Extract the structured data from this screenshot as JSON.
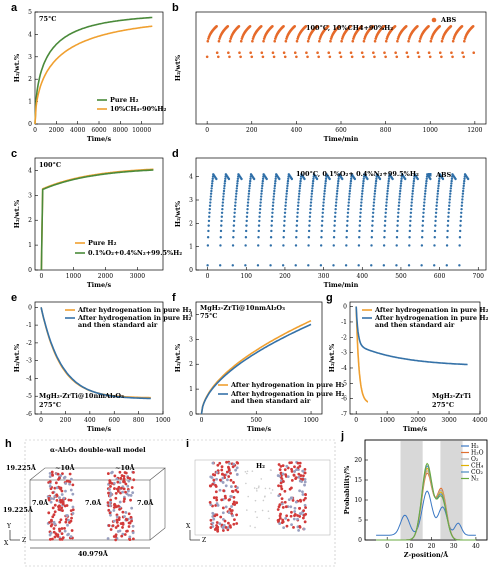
{
  "colors": {
    "orange": "#f0a030",
    "green": "#4a8a3a",
    "blue": "#3572a8",
    "abs": "#e66a2a",
    "absBlue": "#2f6fa8"
  },
  "panels": {
    "a": {
      "letter": "a",
      "annotation": "75°C",
      "xlabel": "Time/s",
      "ylabel": "H₂/wt.%"
    },
    "b": {
      "letter": "b",
      "annotation": "100°C, 10%CH4+90%H₂",
      "xlabel": "Time/min",
      "ylabel": "H₂/wt%"
    },
    "c": {
      "letter": "c",
      "annotation": "100°C",
      "xlabel": "Time/s",
      "ylabel": "H₂/wt.%"
    },
    "d": {
      "letter": "d",
      "annotation": "100°C, 0.1%O₂+ 0.4%N₂+99.5%H₂",
      "xlabel": "Time/min",
      "ylabel": "H₂/wt%"
    },
    "e": {
      "letter": "e",
      "annotation1": "MgH₂-ZrTi@10nmAl₂O₃",
      "annotation2": "275°C",
      "xlabel": "Time/s",
      "ylabel": "H₂/wt.%"
    },
    "f": {
      "letter": "f",
      "annotation1": "MgH₂-ZrTi@10nmAl₂O₃",
      "annotation2": "75°C",
      "xlabel": "Time/s",
      "ylabel": "H₂/wt.%"
    },
    "g": {
      "letter": "g",
      "annotation1": "MgH₂-ZrTi",
      "annotation2": "275°C",
      "xlabel": "Time/s",
      "ylabel": "H₂/wt.%"
    },
    "h": {
      "letter": "h",
      "title": "α-Al₂O₃ double-wall model",
      "dim_a": "~10Å",
      "dim_b": "~10Å",
      "dim_c": "7.0Å",
      "dim_d": "7.0Å",
      "dim_e": "7.0Å",
      "height1": "19.225Å",
      "height2": "19.225Å",
      "width": "40.979Å",
      "axis_y": "Y",
      "axis_z": "Z",
      "axis_x": "X"
    },
    "i": {
      "letter": "i",
      "label": "H₂",
      "axis_x": "X",
      "axis_z": "Z"
    },
    "j": {
      "letter": "j",
      "xlabel": "Z-position/Å",
      "ylabel": "Probability/%"
    }
  },
  "chart_data": [
    {
      "panel": "a",
      "type": "line",
      "xlim": [
        0,
        12000
      ],
      "ylim": [
        0,
        5
      ],
      "xticks": [
        "0",
        "2000",
        "4000",
        "6000",
        "8000",
        "10000"
      ],
      "yticks": [
        "0",
        "1",
        "2",
        "3",
        "4",
        "5"
      ],
      "series": [
        {
          "name": "Pure H₂",
          "color": "#4a8a3a",
          "plateau": 4.95,
          "rate": 0.0011
        },
        {
          "name": "10%CH₄-90%H₂",
          "color": "#f0a030",
          "plateau": 4.85,
          "rate": 0.0006
        }
      ]
    },
    {
      "panel": "b",
      "type": "scatter",
      "xlim": [
        -50,
        1250
      ],
      "ylim": [
        0,
        5.5
      ],
      "xticks": [
        "0",
        "200",
        "400",
        "600",
        "800",
        "1000",
        "1200"
      ],
      "yticks": [],
      "cycles": 24,
      "cycle_max": 4.8,
      "cycle_min": 3.6,
      "series": [
        {
          "name": "ABS",
          "color": "#e66a2a"
        }
      ]
    },
    {
      "panel": "c",
      "type": "line",
      "xlim": [
        -200,
        3800
      ],
      "ylim": [
        0,
        4.5
      ],
      "xticks": [
        "0",
        "1000",
        "2000",
        "3000"
      ],
      "yticks": [
        "0",
        "1",
        "2",
        "3",
        "4"
      ],
      "series": [
        {
          "name": "Pure H₂",
          "color": "#f0a030",
          "plateau": 4.15
        },
        {
          "name": "0.1%O₂+0.4%N₂+99.5%H₂",
          "color": "#4a8a3a",
          "plateau": 4.12
        }
      ]
    },
    {
      "panel": "d",
      "type": "scatter",
      "xlim": [
        -30,
        720
      ],
      "ylim": [
        0,
        4.8
      ],
      "xticks": [
        "0",
        "100",
        "200",
        "300",
        "400",
        "500",
        "600",
        "700"
      ],
      "yticks": [
        "0",
        "1",
        "2",
        "3",
        "4"
      ],
      "cycles": 21,
      "cycle_max": 4.1,
      "cycle_min": 0.2,
      "series": [
        {
          "name": "ABS",
          "color": "#2f6fa8"
        }
      ]
    },
    {
      "panel": "e",
      "type": "line",
      "xlim": [
        -50,
        1000
      ],
      "ylim": [
        -6,
        0.3
      ],
      "xticks": [
        "0",
        "200",
        "400",
        "600",
        "800",
        "1000"
      ],
      "yticks": [
        "0",
        "-1",
        "-2",
        "-3",
        "-4",
        "-5",
        "-6"
      ],
      "series": [
        {
          "name": "After hydrogenation in pure H₂",
          "color": "#f0a030",
          "plateau": -5.1
        },
        {
          "name": "After hydrogenation in pure H₂ and then standard air",
          "color": "#3572a8",
          "plateau": -5.15
        }
      ]
    },
    {
      "panel": "f",
      "type": "line",
      "xlim": [
        -50,
        1100
      ],
      "ylim": [
        0,
        4.5
      ],
      "xticks": [
        "0",
        "500",
        "1000"
      ],
      "yticks": [
        "0",
        "1",
        "2",
        "3",
        "4"
      ],
      "series": [
        {
          "name": "After hydrogenation in pure H₂",
          "color": "#f0a030",
          "end": 3.75
        },
        {
          "name": "After hydrogenation in pure H₂ and then standard air",
          "color": "#3572a8",
          "end": 3.6
        }
      ]
    },
    {
      "panel": "g",
      "type": "line",
      "xlim": [
        -200,
        4000
      ],
      "ylim": [
        -7,
        0.3
      ],
      "xticks": [
        "0",
        "1000",
        "2000",
        "3000",
        "4000"
      ],
      "yticks": [
        "0",
        "-1",
        "-2",
        "-3",
        "-4",
        "-5",
        "-6",
        "-7"
      ],
      "series": [
        {
          "name": "After hydrogenation in pure H₂",
          "color": "#f0a030",
          "plateau": -6.3
        },
        {
          "name": "After hydrogenation in pure H₂ and then standard air",
          "color": "#3572a8",
          "plateau": -3.9
        }
      ]
    },
    {
      "panel": "j",
      "type": "line",
      "xlim": [
        -10,
        45
      ],
      "ylim": [
        0,
        25
      ],
      "xticks": [
        "0",
        "10",
        "20",
        "30",
        "40"
      ],
      "yticks": [
        "0",
        "5",
        "10",
        "15",
        "20"
      ],
      "shaded": [
        [
          6,
          16
        ],
        [
          24,
          34
        ]
      ],
      "series": [
        {
          "name": "H₂",
          "color": "#3b78c4"
        },
        {
          "name": "H₂O",
          "color": "#e07030"
        },
        {
          "name": "O₂",
          "color": "#aaaaaa"
        },
        {
          "name": "CH₄",
          "color": "#e0b000"
        },
        {
          "name": "CO₂",
          "color": "#4a8ac0"
        },
        {
          "name": "N₂",
          "color": "#6aaa40"
        }
      ]
    }
  ]
}
